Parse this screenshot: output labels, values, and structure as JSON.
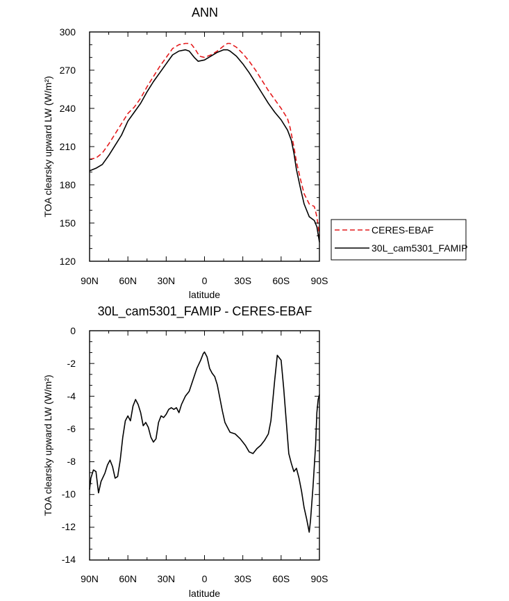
{
  "chart_data": [
    {
      "type": "line",
      "title": "ANN",
      "xlabel": "latitude",
      "ylabel": "TOA clearsky upward LW (W/m²)",
      "xlim": [
        90,
        -90
      ],
      "ylim": [
        120,
        300
      ],
      "xticks": [
        90,
        60,
        30,
        0,
        -30,
        -60,
        -90
      ],
      "xtick_labels": [
        "90N",
        "60N",
        "30N",
        "0",
        "30S",
        "60S",
        "90S"
      ],
      "yticks": [
        120,
        150,
        180,
        210,
        240,
        270,
        300
      ],
      "ytick_labels": [
        "120",
        "150",
        "180",
        "210",
        "240",
        "270",
        "300"
      ],
      "legend_position": "right",
      "series": [
        {
          "name": "CERES-EBAF",
          "color": "#e41a1c",
          "dash": "dashed",
          "points": [
            [
              90,
              200
            ],
            [
              85,
              201
            ],
            [
              80,
              205
            ],
            [
              75,
              212
            ],
            [
              70,
              220
            ],
            [
              65,
              228
            ],
            [
              60,
              236
            ],
            [
              55,
              241
            ],
            [
              50,
              248
            ],
            [
              45,
              257
            ],
            [
              40,
              265
            ],
            [
              35,
              273
            ],
            [
              30,
              280
            ],
            [
              25,
              287
            ],
            [
              20,
              290
            ],
            [
              15,
              291
            ],
            [
              12,
              291
            ],
            [
              10,
              290
            ],
            [
              7,
              286
            ],
            [
              4,
              281
            ],
            [
              0,
              280
            ],
            [
              -5,
              282
            ],
            [
              -10,
              285
            ],
            [
              -15,
              289
            ],
            [
              -18,
              291
            ],
            [
              -20,
              291
            ],
            [
              -25,
              288
            ],
            [
              -30,
              283
            ],
            [
              -35,
              277
            ],
            [
              -40,
              270
            ],
            [
              -45,
              262
            ],
            [
              -50,
              254
            ],
            [
              -55,
              247
            ],
            [
              -60,
              240
            ],
            [
              -65,
              232
            ],
            [
              -67,
              225
            ],
            [
              -70,
              210
            ],
            [
              -72,
              198
            ],
            [
              -75,
              185
            ],
            [
              -78,
              173
            ],
            [
              -82,
              165
            ],
            [
              -86,
              163
            ],
            [
              -88,
              155
            ],
            [
              -90,
              140
            ]
          ]
        },
        {
          "name": "30L_cam5301_FAMIP",
          "color": "#000000",
          "dash": "solid",
          "points": [
            [
              90,
              191
            ],
            [
              85,
              193
            ],
            [
              80,
              196
            ],
            [
              75,
              203
            ],
            [
              70,
              211
            ],
            [
              65,
              219
            ],
            [
              60,
              230
            ],
            [
              55,
              237
            ],
            [
              50,
              244
            ],
            [
              45,
              253
            ],
            [
              40,
              261
            ],
            [
              35,
              268
            ],
            [
              30,
              275
            ],
            [
              25,
              282
            ],
            [
              20,
              285
            ],
            [
              15,
              286
            ],
            [
              12,
              285
            ],
            [
              8,
              280
            ],
            [
              5,
              277
            ],
            [
              0,
              278
            ],
            [
              -5,
              281
            ],
            [
              -10,
              284
            ],
            [
              -15,
              286
            ],
            [
              -18,
              286
            ],
            [
              -20,
              285
            ],
            [
              -25,
              281
            ],
            [
              -30,
              275
            ],
            [
              -35,
              268
            ],
            [
              -40,
              260
            ],
            [
              -45,
              252
            ],
            [
              -50,
              244
            ],
            [
              -55,
              237
            ],
            [
              -60,
              231
            ],
            [
              -65,
              223
            ],
            [
              -68,
              215
            ],
            [
              -70,
              205
            ],
            [
              -72,
              192
            ],
            [
              -75,
              178
            ],
            [
              -78,
              165
            ],
            [
              -82,
              155
            ],
            [
              -86,
              152
            ],
            [
              -88,
              147
            ],
            [
              -90,
              135
            ]
          ]
        }
      ]
    },
    {
      "type": "line",
      "title": "30L_cam5301_FAMIP - CERES-EBAF",
      "xlabel": "latitude",
      "ylabel": "TOA clearsky upward LW (W/m²)",
      "xlim": [
        90,
        -90
      ],
      "ylim": [
        -14,
        0
      ],
      "xticks": [
        90,
        60,
        30,
        0,
        -30,
        -60,
        -90
      ],
      "xtick_labels": [
        "90N",
        "60N",
        "30N",
        "0",
        "30S",
        "60S",
        "90S"
      ],
      "yticks": [
        0,
        -2,
        -4,
        -6,
        -8,
        -10,
        -12,
        -14
      ],
      "ytick_labels": [
        "0",
        "-2",
        "-4",
        "-6",
        "-8",
        "-10",
        "-12",
        "-14"
      ],
      "series": [
        {
          "color": "#000000",
          "dash": "solid",
          "points": [
            [
              90,
              -9.7
            ],
            [
              89,
              -9.0
            ],
            [
              87,
              -8.5
            ],
            [
              85,
              -8.6
            ],
            [
              83,
              -9.9
            ],
            [
              81,
              -9.2
            ],
            [
              78,
              -8.7
            ],
            [
              76,
              -8.2
            ],
            [
              74,
              -7.9
            ],
            [
              72,
              -8.3
            ],
            [
              70,
              -9.0
            ],
            [
              68,
              -8.9
            ],
            [
              66,
              -7.9
            ],
            [
              64,
              -6.5
            ],
            [
              62,
              -5.5
            ],
            [
              60,
              -5.2
            ],
            [
              58,
              -5.5
            ],
            [
              56,
              -4.6
            ],
            [
              54,
              -4.2
            ],
            [
              52,
              -4.5
            ],
            [
              50,
              -5.0
            ],
            [
              48,
              -5.8
            ],
            [
              46,
              -5.6
            ],
            [
              44,
              -5.9
            ],
            [
              42,
              -6.5
            ],
            [
              40,
              -6.8
            ],
            [
              38,
              -6.6
            ],
            [
              36,
              -5.6
            ],
            [
              34,
              -5.2
            ],
            [
              32,
              -5.3
            ],
            [
              30,
              -5.1
            ],
            [
              28,
              -4.8
            ],
            [
              26,
              -4.7
            ],
            [
              24,
              -4.8
            ],
            [
              22,
              -4.7
            ],
            [
              20,
              -5.0
            ],
            [
              18,
              -4.5
            ],
            [
              15,
              -4.0
            ],
            [
              12,
              -3.7
            ],
            [
              9,
              -3.0
            ],
            [
              6,
              -2.3
            ],
            [
              3,
              -1.8
            ],
            [
              1,
              -1.4
            ],
            [
              0,
              -1.3
            ],
            [
              -2,
              -1.6
            ],
            [
              -4,
              -2.3
            ],
            [
              -6,
              -2.6
            ],
            [
              -8,
              -2.8
            ],
            [
              -10,
              -3.3
            ],
            [
              -12,
              -4.1
            ],
            [
              -14,
              -4.9
            ],
            [
              -16,
              -5.6
            ],
            [
              -18,
              -5.9
            ],
            [
              -20,
              -6.2
            ],
            [
              -24,
              -6.3
            ],
            [
              -28,
              -6.6
            ],
            [
              -32,
              -7.0
            ],
            [
              -35,
              -7.4
            ],
            [
              -38,
              -7.5
            ],
            [
              -41,
              -7.2
            ],
            [
              -44,
              -7.0
            ],
            [
              -47,
              -6.7
            ],
            [
              -50,
              -6.3
            ],
            [
              -52,
              -5.5
            ],
            [
              -55,
              -3.0
            ],
            [
              -57,
              -1.5
            ],
            [
              -58,
              -1.6
            ],
            [
              -60,
              -1.8
            ],
            [
              -62,
              -3.5
            ],
            [
              -64,
              -5.5
            ],
            [
              -66,
              -7.5
            ],
            [
              -68,
              -8.1
            ],
            [
              -70,
              -8.6
            ],
            [
              -72,
              -8.4
            ],
            [
              -74,
              -9.0
            ],
            [
              -76,
              -9.8
            ],
            [
              -78,
              -10.8
            ],
            [
              -80,
              -11.5
            ],
            [
              -82,
              -12.3
            ],
            [
              -83,
              -11.6
            ],
            [
              -85,
              -9.5
            ],
            [
              -87,
              -7.0
            ],
            [
              -88,
              -5.0
            ],
            [
              -89,
              -4.2
            ],
            [
              -90,
              -3.9
            ]
          ]
        }
      ]
    }
  ]
}
